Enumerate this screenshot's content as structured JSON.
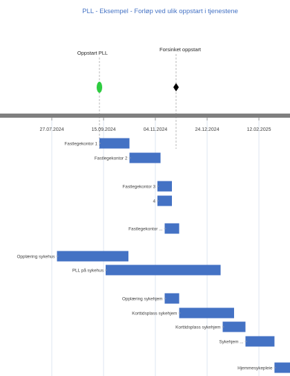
{
  "chart_data": {
    "type": "gantt",
    "title": "PLL - Eksempel - Forløp ved ulik oppstart i tjenestene",
    "axis": {
      "ticks": [
        "27.07.2024",
        "15.09.2024",
        "04.11.2024",
        "24.12.2024",
        "12.02.2025"
      ],
      "tick_dates": [
        "2024-07-27",
        "2024-09-15",
        "2024-11-04",
        "2024-12-24",
        "2025-02-12"
      ]
    },
    "milestones": [
      {
        "label": "Oppstart PLL",
        "date": "2024-09-11",
        "color": "#2ecc40",
        "shape": "circle"
      },
      {
        "label": "Forsinket oppstart",
        "date": "2024-11-24",
        "color": "#000000",
        "shape": "diamond"
      }
    ],
    "tasks": [
      {
        "label": "Fastlegekontor 1",
        "start": "2024-09-11",
        "end": "2024-10-10"
      },
      {
        "label": "Fastlegekontor 2",
        "start": "2024-10-10",
        "end": "2024-11-09"
      },
      {
        "label": "Fastlegekontor 3",
        "start": "2024-11-06",
        "end": "2024-11-20"
      },
      {
        "label": "4",
        "start": "2024-11-06",
        "end": "2024-11-20"
      },
      {
        "label": "Fastlegekontor ...",
        "start": "2024-11-13",
        "end": "2024-11-27"
      },
      {
        "label": "Opplæring sykehus",
        "start": "2024-08-01",
        "end": "2024-10-09"
      },
      {
        "label": "PLL på sykehus",
        "start": "2024-09-17",
        "end": "2025-01-06"
      },
      {
        "label": "Opplæring sykehjem",
        "start": "2024-11-13",
        "end": "2024-11-27"
      },
      {
        "label": "Korttidsplass sykehjem",
        "start": "2024-11-27",
        "end": "2025-01-19"
      },
      {
        "label": "Korttidsplass sykehjem",
        "start": "2025-01-08",
        "end": "2025-01-30"
      },
      {
        "label": "Sykehjem ...",
        "start": "2025-01-30",
        "end": "2025-02-27"
      },
      {
        "label": "Hjemmesykepleie",
        "start": "2025-02-27",
        "end": "2025-03-28"
      }
    ],
    "colors": {
      "bar": "#4472c4",
      "axis": "#7f7f7f",
      "title": "#4472c4"
    }
  }
}
